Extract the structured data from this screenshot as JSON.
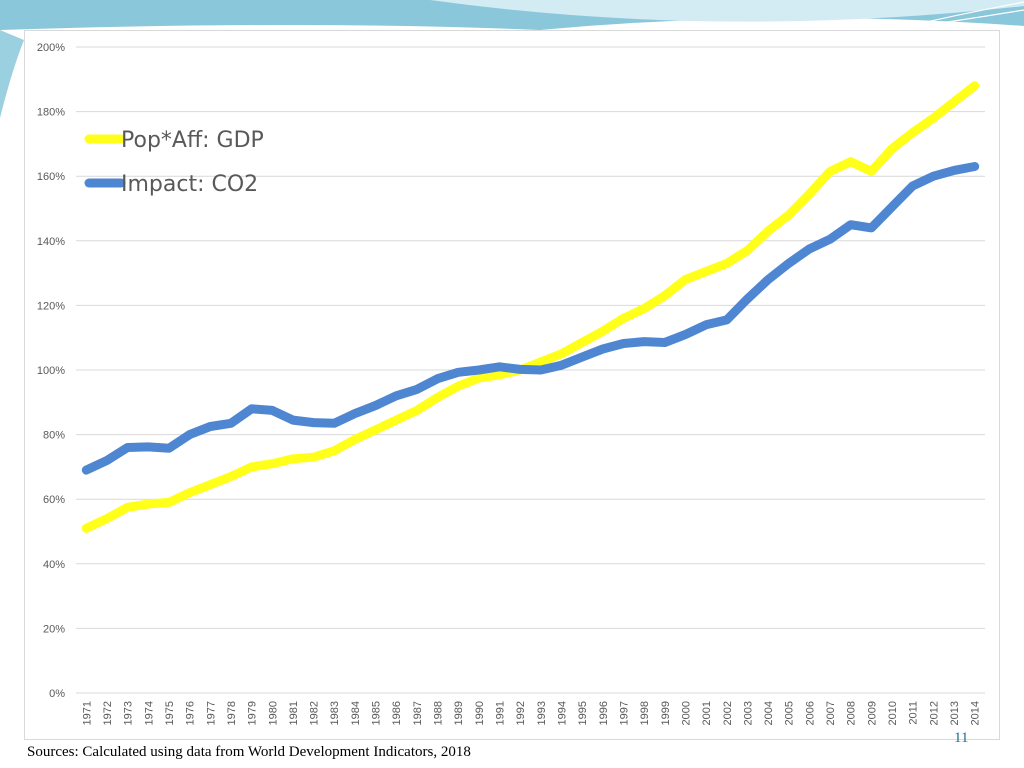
{
  "slide": {
    "source_note": "Sources: Calculated using data from  World Development Indicators, 2018",
    "page_number": "11",
    "colors": {
      "header_teal": "#7fc4d9",
      "header_light": "#cfe9f1",
      "accent_blue": "#1f6f8b"
    }
  },
  "chart_data": {
    "type": "line",
    "title": "",
    "xlabel": "",
    "ylabel": "",
    "ylim": [
      0,
      200
    ],
    "y_ticks": [
      "0%",
      "20%",
      "40%",
      "60%",
      "80%",
      "100%",
      "120%",
      "140%",
      "160%",
      "180%",
      "200%"
    ],
    "grid": true,
    "legend_position": "top-left",
    "categories": [
      "1971",
      "1972",
      "1973",
      "1974",
      "1975",
      "1976",
      "1977",
      "1978",
      "1979",
      "1980",
      "1981",
      "1982",
      "1983",
      "1984",
      "1985",
      "1986",
      "1987",
      "1988",
      "1989",
      "1990",
      "1991",
      "1992",
      "1993",
      "1994",
      "1995",
      "1996",
      "1997",
      "1998",
      "1999",
      "2000",
      "2001",
      "2002",
      "2003",
      "2004",
      "2005",
      "2006",
      "2007",
      "2008",
      "2009",
      "2010",
      "2011",
      "2012",
      "2013",
      "2014"
    ],
    "series": [
      {
        "name": "Pop*Aff: GDP",
        "color": "#ffff1a",
        "values": [
          51,
          54,
          57.5,
          58.5,
          59,
          62,
          64.5,
          67,
          70,
          71,
          72.5,
          73,
          75,
          78.5,
          81.5,
          84.5,
          87.5,
          91.5,
          95,
          97.5,
          98.5,
          100,
          102.5,
          105,
          108.5,
          112,
          116,
          119,
          123,
          128,
          130.5,
          133,
          137,
          143,
          148,
          154.5,
          161.5,
          164.5,
          161.5,
          168.5,
          173.5,
          178,
          183,
          188
        ]
      },
      {
        "name": "Impact: CO2",
        "color": "#4f86d1",
        "values": [
          69,
          72,
          76,
          76.2,
          75.8,
          80,
          82.5,
          83.5,
          88,
          87.5,
          84.5,
          83.7,
          83.5,
          86.5,
          89,
          92,
          94,
          97.3,
          99.3,
          100,
          101,
          100.2,
          100,
          101.5,
          104,
          106.5,
          108.2,
          108.8,
          108.5,
          111,
          114,
          115.5,
          122,
          128,
          133,
          137.5,
          140.5,
          145,
          144,
          150.5,
          157,
          160,
          161.8,
          163
        ]
      }
    ]
  }
}
